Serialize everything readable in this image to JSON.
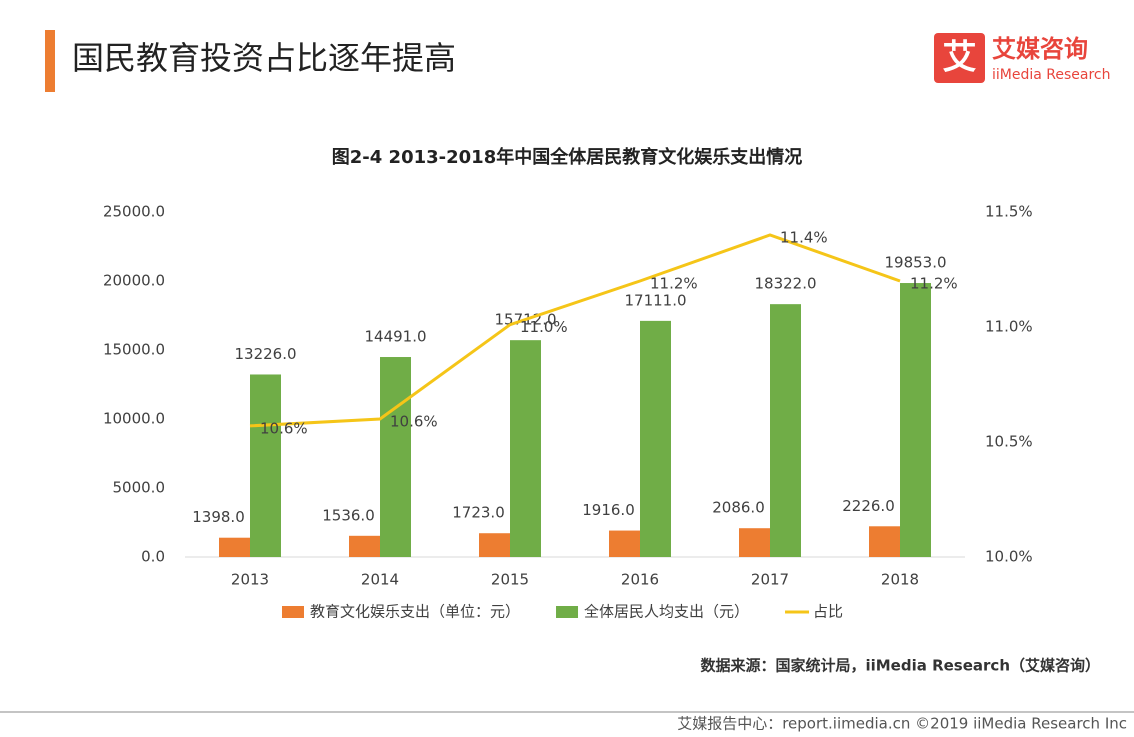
{
  "header": {
    "title": "国民教育投资占比逐年提高",
    "logo_mark": "艾",
    "logo_name": "艾媒咨询",
    "logo_sub": "iiMedia Research"
  },
  "chart_data": {
    "type": "bar-line",
    "title": "图2-4 2013-2018年中国全体居民教育文化娱乐支出情况",
    "categories": [
      "2013",
      "2014",
      "2015",
      "2016",
      "2017",
      "2018"
    ],
    "series": [
      {
        "name": "教育文化娱乐支出（单位：元）",
        "type": "bar",
        "color": "#ed7d31",
        "values": [
          1398,
          1536,
          1723,
          1916,
          2086,
          2226
        ],
        "value_labels": [
          "1398.0",
          "1536.0",
          "1723.0",
          "1916.0",
          "2086.0",
          "2226.0"
        ]
      },
      {
        "name": "全体居民人均支出（元）",
        "type": "bar",
        "color": "#70ad47",
        "values": [
          13226,
          14491,
          15712,
          17111,
          18322,
          19853
        ],
        "value_labels": [
          "13226.0",
          "14491.0",
          "15712.0",
          "17111.0",
          "18322.0",
          "19853.0"
        ]
      },
      {
        "name": "占比",
        "type": "line",
        "axis": "y2",
        "color": "#f5c518",
        "values": [
          10.57,
          10.6,
          11.01,
          11.2,
          11.4,
          11.2
        ],
        "value_labels": [
          "10.6%",
          "10.6%",
          "11.0%",
          "11.2%",
          "11.4%",
          "11.2%"
        ]
      }
    ],
    "ylim": [
      0,
      25000
    ],
    "yticks": [
      {
        "value": 0,
        "label": "0.0"
      },
      {
        "value": 5000,
        "label": "5000.0"
      },
      {
        "value": 10000,
        "label": "10000.0"
      },
      {
        "value": 15000,
        "label": "15000.0"
      },
      {
        "value": 20000,
        "label": "20000.0"
      },
      {
        "value": 25000,
        "label": "25000.0"
      }
    ],
    "y2lim": [
      10,
      11.5
    ],
    "y2ticks": [
      {
        "value": 10,
        "label": "10.0%"
      },
      {
        "value": 10.5,
        "label": "10.5%"
      },
      {
        "value": 11,
        "label": "11.0%"
      },
      {
        "value": 11.5,
        "label": "11.5%"
      }
    ],
    "grid": false,
    "legend": "bottom",
    "source": "数据来源：国家统计局，iiMedia Research（艾媒咨询）"
  },
  "footer": "艾媒报告中心：report.iimedia.cn  ©2019  iiMedia Research Inc"
}
